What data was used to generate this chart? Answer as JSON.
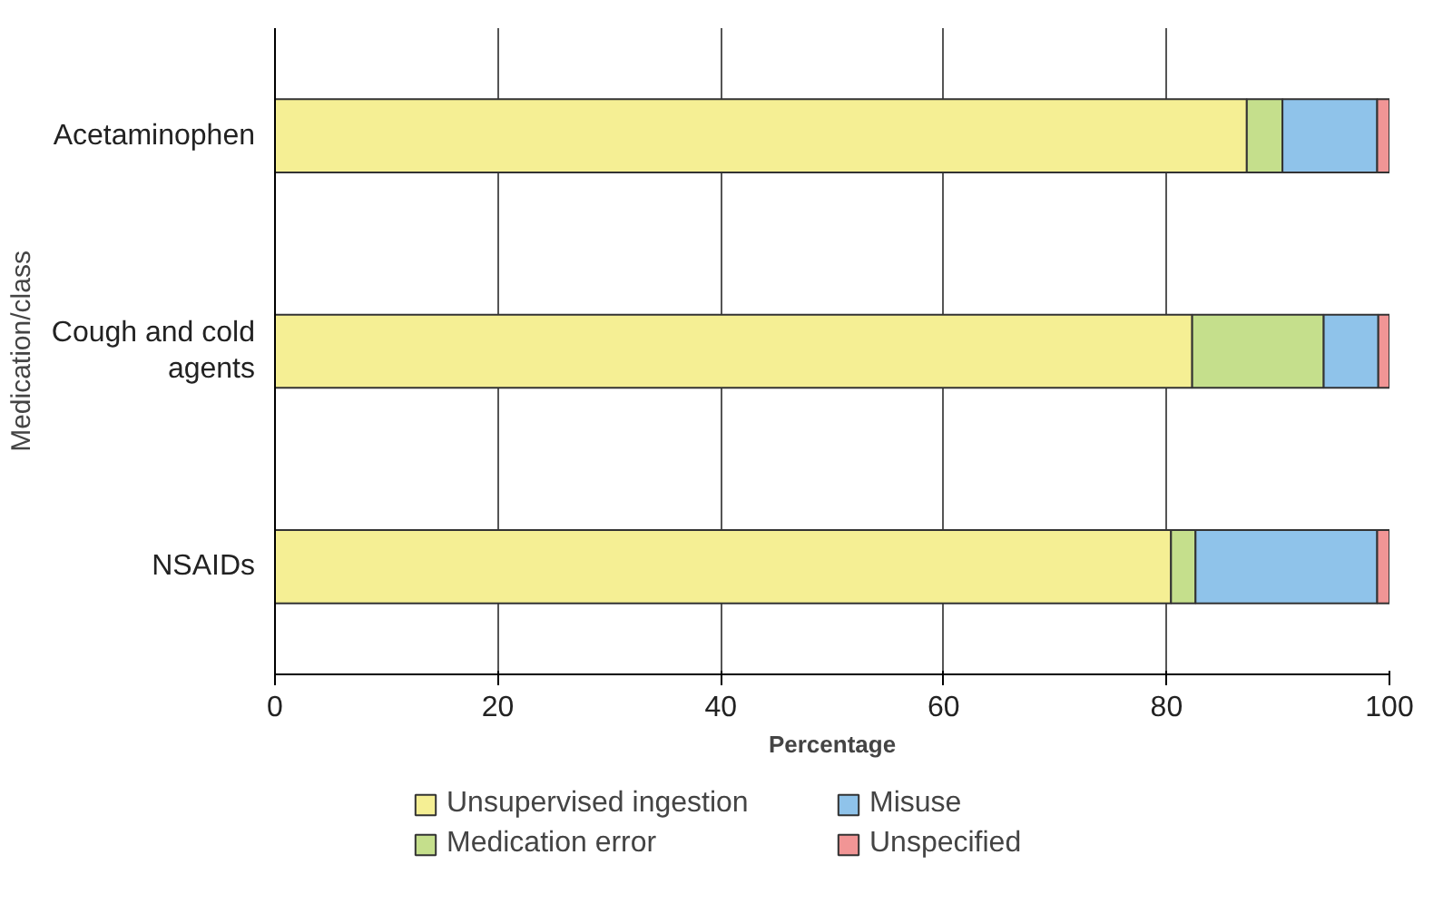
{
  "chart_data": {
    "type": "bar",
    "orientation": "horizontal",
    "stacked": true,
    "xlabel": "Percentage",
    "ylabel": "Medication/class",
    "categories": [
      "Acetaminophen",
      "Cough and cold agents",
      "NSAIDs"
    ],
    "series": [
      {
        "name": "Unsupervised ingestion",
        "color": "#f5ef94",
        "values": [
          87.2,
          82.3,
          80.4
        ]
      },
      {
        "name": "Medication error",
        "color": "#c5df8c",
        "values": [
          3.2,
          11.8,
          2.2
        ]
      },
      {
        "name": "Misuse",
        "color": "#8fc3ea",
        "values": [
          8.5,
          4.9,
          16.3
        ]
      },
      {
        "name": "Unspecified",
        "color": "#f19595",
        "values": [
          1.1,
          1.0,
          1.1
        ]
      }
    ],
    "xlim": [
      0,
      100
    ],
    "xticks": [
      0,
      20,
      40,
      60,
      80,
      100
    ],
    "grid": "x",
    "legend": "bottom"
  }
}
